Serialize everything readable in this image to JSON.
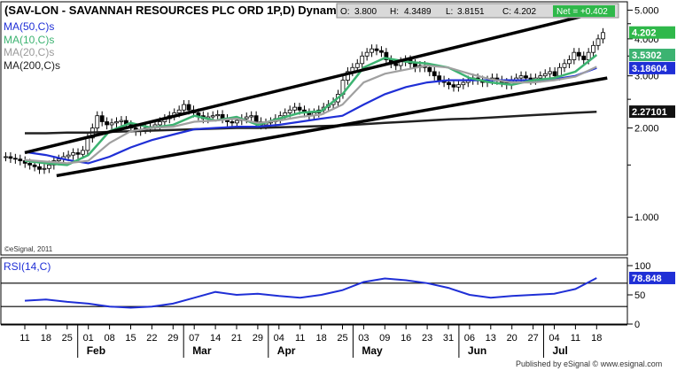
{
  "chart_header": {
    "title": "(SAV-LON - SAVANNAH RESOURCES PLC ORD 1P,D) Dynam",
    "quote": {
      "open_label": "O:",
      "open": "3.800",
      "high_label": "H:",
      "high": "4.3489",
      "low_label": "L:",
      "low": "3.8151",
      "close_label": "C:",
      "close": "4.202",
      "net_label": "Net = +0.402"
    },
    "copyright": "©eSignal, 2011",
    "footer": "Published by eSignal © www.esignal.com"
  },
  "price_legend": [
    {
      "label": "MA(50,C)s",
      "color": "#1f2fd6"
    },
    {
      "label": "MA(10,C)s",
      "color": "#3cb371"
    },
    {
      "label": "MA(20,C)s",
      "color": "#a0a0a0"
    },
    {
      "label": "MA(200,C)s",
      "color": "#222222"
    }
  ],
  "rsi_legend": {
    "label": "RSI(14,C)",
    "color": "#1f2fd6"
  },
  "price_axis": {
    "ticks": [
      {
        "value": 5.0,
        "label": "5.000"
      },
      {
        "value": 4.0,
        "label": "4.000"
      },
      {
        "value": 3.0,
        "label": "3.000"
      },
      {
        "value": 2.0,
        "label": "2.000"
      },
      {
        "value": 1.0,
        "label": "1.000"
      }
    ],
    "badges": [
      {
        "value": 4.202,
        "label": "4.202",
        "bg": "#2fb84a",
        "fg": "#ffffff"
      },
      {
        "value": 3.5302,
        "label": "3.5302",
        "bg": "#3cb371",
        "fg": "#ffffff"
      },
      {
        "value": 3.18604,
        "label": "3.18604",
        "bg": "#1f2fd6",
        "fg": "#ffffff"
      },
      {
        "value": 2.27101,
        "label": "2.27101",
        "bg": "#111111",
        "fg": "#ffffff"
      }
    ]
  },
  "rsi_axis": {
    "ticks": [
      {
        "value": 100,
        "label": "100"
      },
      {
        "value": 50,
        "label": "50"
      },
      {
        "value": 0,
        "label": "0"
      }
    ],
    "badge": {
      "value": 78.848,
      "label": "78.848",
      "bg": "#1f2fd6",
      "fg": "#ffffff"
    },
    "levels": [
      70,
      30
    ]
  },
  "date_axis": {
    "days": [
      "11",
      "18",
      "25",
      "01",
      "08",
      "15",
      "22",
      "29",
      "07",
      "14",
      "21",
      "29",
      "04",
      "11",
      "18",
      "25",
      "03",
      "09",
      "16",
      "23",
      "31",
      "06",
      "13",
      "20",
      "27",
      "04",
      "11",
      "18"
    ],
    "months": [
      {
        "label": "Feb",
        "at_day_index": 3
      },
      {
        "label": "Mar",
        "at_day_index": 8
      },
      {
        "label": "Apr",
        "at_day_index": 12
      },
      {
        "label": "May",
        "at_day_index": 16
      },
      {
        "label": "Jun",
        "at_day_index": 21
      },
      {
        "label": "Jul",
        "at_day_index": 25
      }
    ]
  },
  "chart_data": [
    {
      "type": "line",
      "title": "(SAV-LON - SAVANNAH RESOURCES PLC ORD 1P,D) Dynam",
      "scale": "log",
      "ylim": [
        0.75,
        5.3
      ],
      "x": [
        "11",
        "18",
        "25",
        "01",
        "08",
        "15",
        "22",
        "29",
        "07",
        "14",
        "21",
        "29",
        "04",
        "11",
        "18",
        "25",
        "03",
        "09",
        "16",
        "23",
        "31",
        "06",
        "13",
        "20",
        "27",
        "04",
        "11",
        "18"
      ],
      "series": [
        {
          "name": "MA(10,C)s",
          "color": "#3cb371",
          "values": [
            1.55,
            1.52,
            1.5,
            1.62,
            1.95,
            2.08,
            2.0,
            2.05,
            2.2,
            2.12,
            2.18,
            2.05,
            2.15,
            2.25,
            2.28,
            2.6,
            3.2,
            3.45,
            3.35,
            3.3,
            3.2,
            2.95,
            2.85,
            2.8,
            2.9,
            2.95,
            3.1,
            3.53
          ]
        },
        {
          "name": "MA(20,C)s",
          "color": "#a0a0a0",
          "values": [
            1.56,
            1.54,
            1.52,
            1.55,
            1.78,
            1.95,
            2.0,
            2.02,
            2.1,
            2.12,
            2.15,
            2.08,
            2.12,
            2.18,
            2.22,
            2.4,
            2.85,
            3.05,
            3.15,
            3.25,
            3.2,
            3.05,
            2.92,
            2.85,
            2.85,
            2.9,
            2.98,
            3.22
          ]
        },
        {
          "name": "MA(50,C)s",
          "color": "#1f2fd6",
          "values": [
            1.66,
            1.62,
            1.56,
            1.52,
            1.6,
            1.72,
            1.82,
            1.9,
            1.98,
            2.0,
            2.02,
            2.02,
            2.05,
            2.1,
            2.15,
            2.2,
            2.4,
            2.6,
            2.75,
            2.85,
            2.9,
            2.9,
            2.9,
            2.9,
            2.9,
            2.92,
            3.0,
            3.19
          ]
        },
        {
          "name": "MA(200,C)s",
          "color": "#222222",
          "values": [
            1.92,
            1.92,
            1.93,
            1.93,
            1.94,
            1.95,
            1.96,
            1.97,
            1.98,
            1.99,
            2.0,
            2.0,
            2.01,
            2.02,
            2.03,
            2.04,
            2.06,
            2.08,
            2.1,
            2.12,
            2.14,
            2.15,
            2.17,
            2.19,
            2.21,
            2.23,
            2.25,
            2.27
          ]
        }
      ],
      "trendlines": [
        {
          "from": [
            0,
            1.65
          ],
          "to": [
            27.5,
            5.0
          ],
          "color": "#000000"
        },
        {
          "from": [
            1.5,
            1.38
          ],
          "to": [
            27.5,
            2.95
          ],
          "color": "#000000"
        }
      ],
      "candles": {
        "count": 125,
        "closes": [
          1.6,
          1.58,
          1.57,
          1.55,
          1.52,
          1.5,
          1.48,
          1.45,
          1.46,
          1.5,
          1.55,
          1.57,
          1.6,
          1.62,
          1.65,
          1.63,
          1.68,
          1.85,
          2.0,
          2.2,
          2.1,
          2.05,
          2.08,
          2.1,
          2.12,
          2.05,
          2.0,
          1.95,
          1.98,
          2.0,
          2.02,
          2.05,
          2.1,
          2.15,
          2.2,
          2.25,
          2.3,
          2.4,
          2.3,
          2.25,
          2.2,
          2.15,
          2.18,
          2.2,
          2.22,
          2.15,
          2.1,
          2.08,
          2.12,
          2.15,
          2.18,
          2.2,
          2.1,
          2.05,
          2.08,
          2.1,
          2.15,
          2.2,
          2.25,
          2.3,
          2.35,
          2.3,
          2.25,
          2.2,
          2.25,
          2.3,
          2.35,
          2.4,
          2.45,
          2.6,
          2.9,
          3.1,
          3.2,
          3.3,
          3.5,
          3.6,
          3.7,
          3.65,
          3.6,
          3.4,
          3.3,
          3.25,
          3.35,
          3.4,
          3.3,
          3.2,
          3.25,
          3.2,
          3.1,
          3.0,
          2.9,
          2.85,
          2.8,
          2.75,
          2.8,
          2.85,
          2.9,
          2.95,
          2.9,
          2.85,
          2.9,
          2.95,
          2.9,
          2.85,
          2.8,
          2.9,
          2.95,
          3.0,
          2.95,
          2.9,
          2.95,
          3.0,
          3.05,
          3.1,
          3.0,
          3.2,
          3.3,
          3.4,
          3.6,
          3.5,
          3.4,
          3.6,
          3.8,
          4.0,
          4.2
        ]
      }
    },
    {
      "type": "line",
      "title": "RSI(14,C)",
      "ylim": [
        0,
        100
      ],
      "levels": [
        70,
        30
      ],
      "series": [
        {
          "name": "RSI(14,C)",
          "color": "#1f2fd6",
          "values": [
            40,
            42,
            38,
            35,
            30,
            28,
            30,
            35,
            45,
            55,
            50,
            52,
            48,
            45,
            50,
            58,
            72,
            78,
            75,
            70,
            62,
            50,
            45,
            48,
            50,
            52,
            60,
            78.848
          ]
        }
      ]
    }
  ]
}
